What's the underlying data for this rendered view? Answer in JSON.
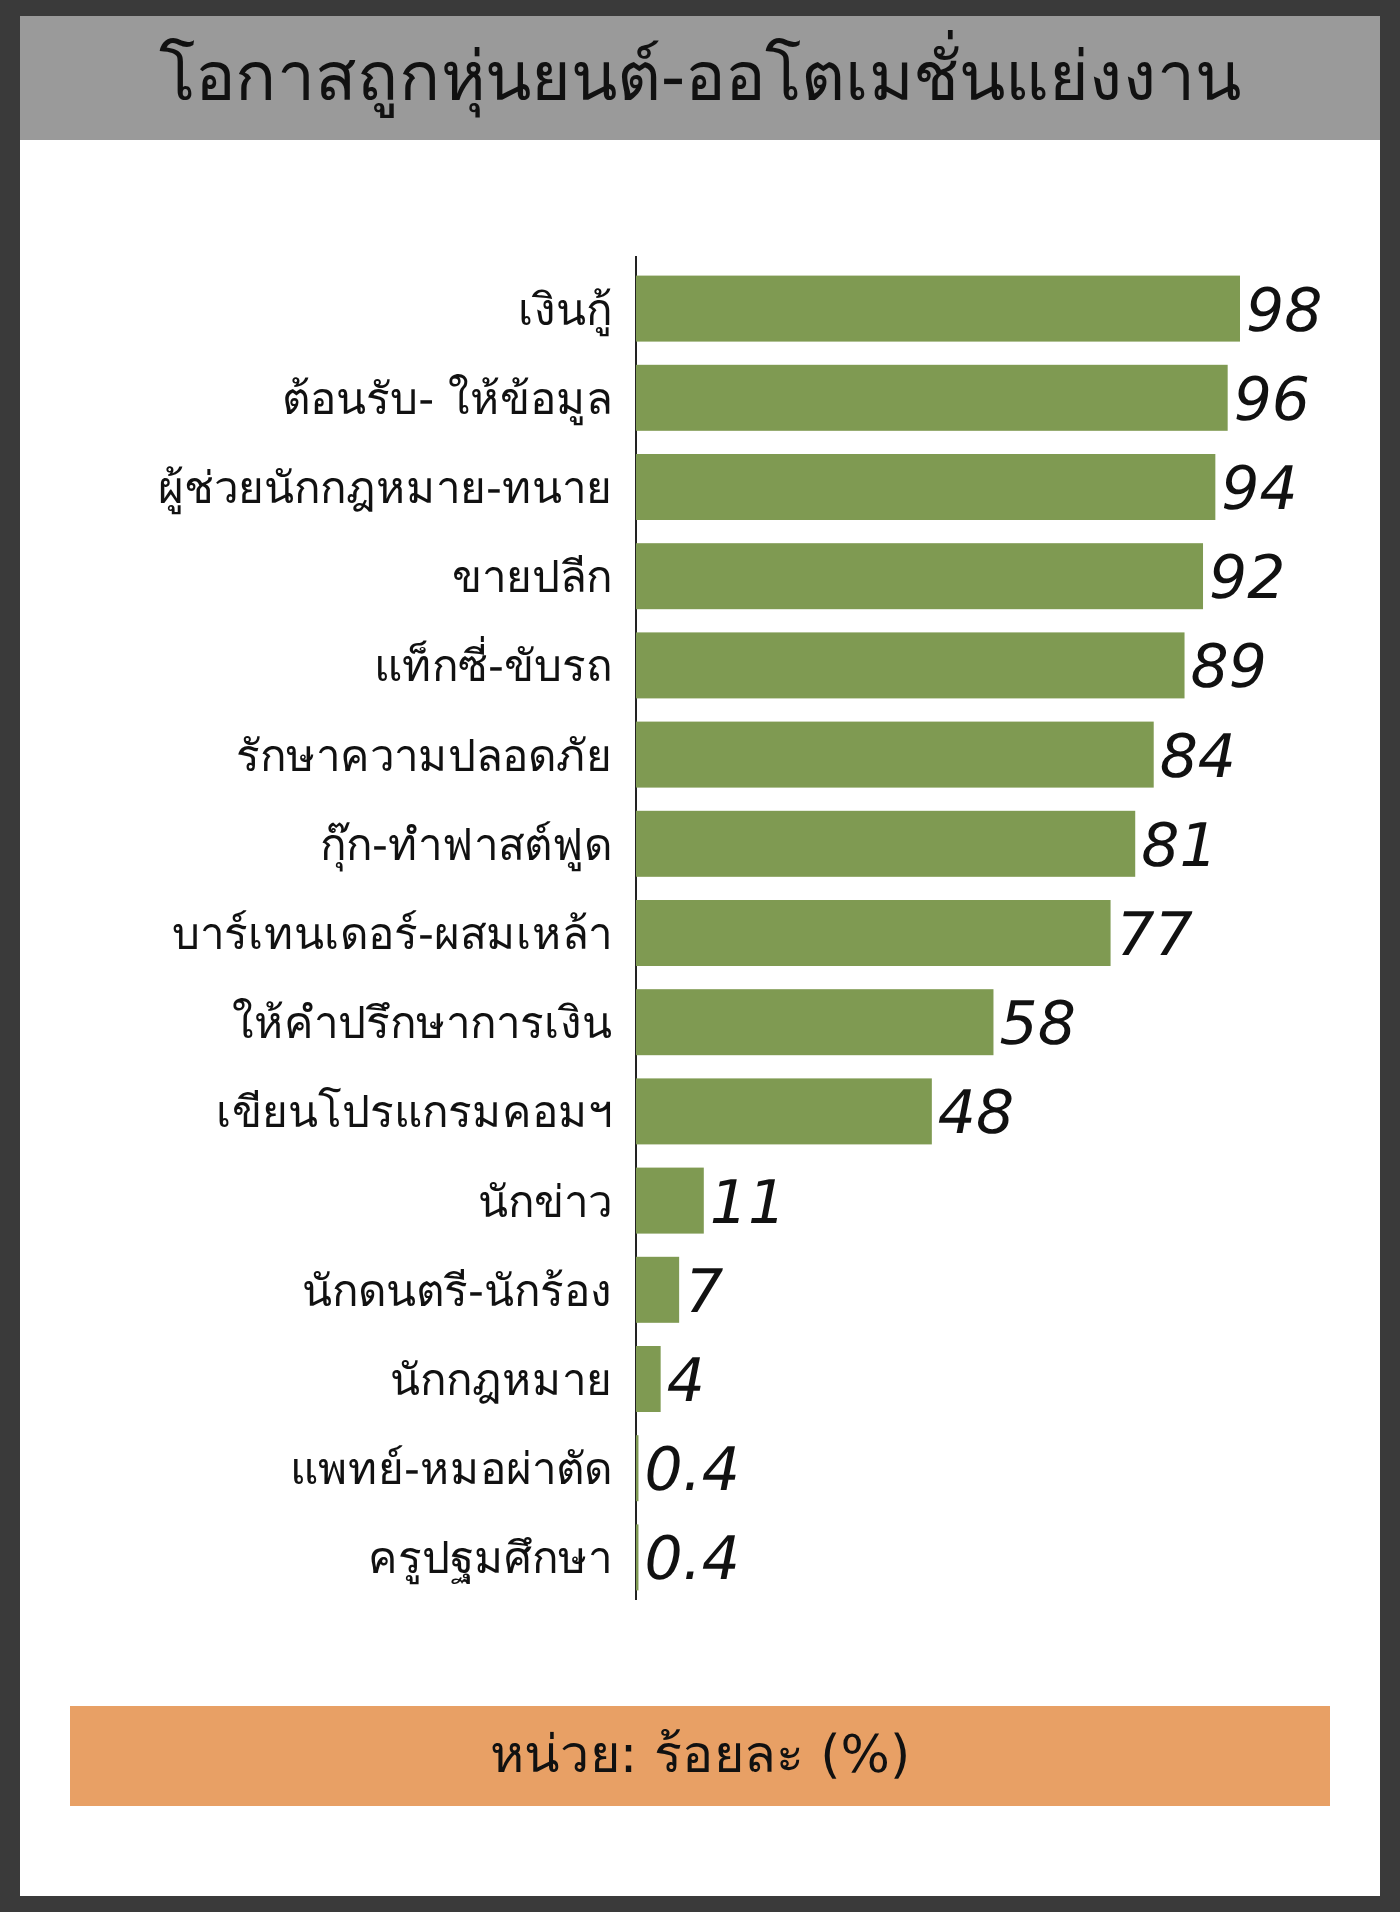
{
  "chart_data": {
    "type": "bar",
    "orientation": "horizontal",
    "title": "โอกาสถูกหุ่นยนต์-ออโตเมชั่นแย่งงาน",
    "categories": [
      "เงินกู้",
      "ต้อนรับ- ให้ข้อมูล",
      "ผู้ช่วยนักกฎหมาย-ทนาย",
      "ขายปลีก",
      "แท็กซี่-ขับรถ",
      "รักษาความปลอดภัย",
      "กุ๊ก-ทำฟาสต์ฟูด",
      "บาร์เทนเดอร์-ผสมเหล้า",
      "ให้คำปรึกษาการเงิน",
      "เขียนโปรแกรมคอมฯ",
      "นักข่าว",
      "นักดนตรี-นักร้อง",
      "นักกฎหมาย",
      "แพทย์-หมอผ่าตัด",
      "ครูปฐมศึกษา"
    ],
    "values": [
      98,
      96,
      94,
      92,
      89,
      84,
      81,
      77,
      58,
      48,
      11,
      7,
      4,
      0.4,
      0.4
    ],
    "color": "#7f9a52",
    "data_labels": true,
    "annotations": [
      "หน่วย: ร้อยละ (%)"
    ]
  }
}
